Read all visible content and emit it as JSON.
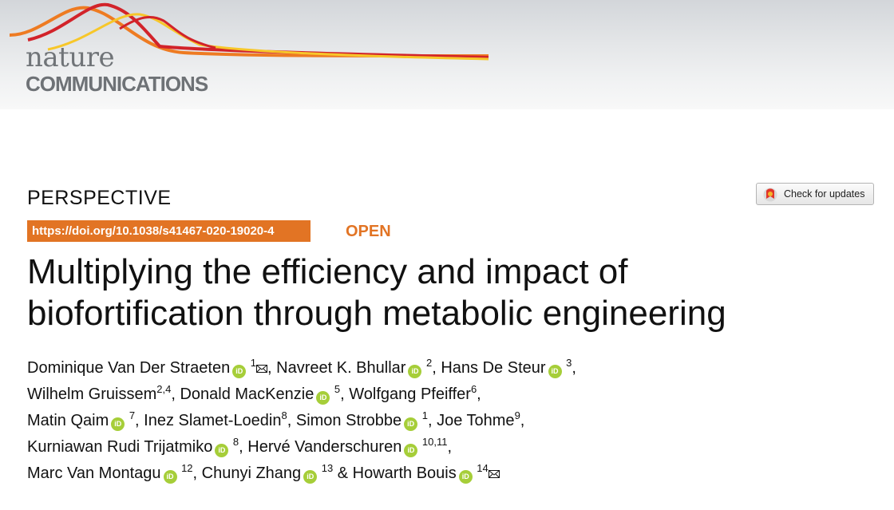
{
  "journal": {
    "logo_line1": "nature",
    "logo_line2": "COMMUNICATIONS"
  },
  "article": {
    "type": "PERSPECTIVE",
    "doi": "https://doi.org/10.1038/s41467-020-19020-4",
    "access": "OPEN",
    "title_line1": "Multiplying the efficiency and impact of",
    "title_line2": "biofortification through metabolic engineering"
  },
  "check_updates": {
    "label": "Check for updates"
  },
  "orcid_badge": "iD",
  "authors": [
    {
      "name": "Dominique Van Der Straeten",
      "affiliation": "1",
      "orcid": true,
      "corresponding": true
    },
    {
      "name": "Navreet K. Bhullar",
      "affiliation": "2",
      "orcid": true,
      "corresponding": false
    },
    {
      "name": "Hans De Steur",
      "affiliation": "3",
      "orcid": true,
      "corresponding": false
    },
    {
      "name": "Wilhelm Gruissem",
      "affiliation": "2,4",
      "orcid": false,
      "corresponding": false
    },
    {
      "name": "Donald MacKenzie",
      "affiliation": "5",
      "orcid": true,
      "corresponding": false
    },
    {
      "name": "Wolfgang Pfeiffer",
      "affiliation": "6",
      "orcid": false,
      "corresponding": false
    },
    {
      "name": "Matin Qaim",
      "affiliation": "7",
      "orcid": true,
      "corresponding": false
    },
    {
      "name": "Inez Slamet-Loedin",
      "affiliation": "8",
      "orcid": false,
      "corresponding": false
    },
    {
      "name": "Simon Strobbe",
      "affiliation": "1",
      "orcid": true,
      "corresponding": false
    },
    {
      "name": "Joe Tohme",
      "affiliation": "9",
      "orcid": false,
      "corresponding": false
    },
    {
      "name": "Kurniawan Rudi Trijatmiko",
      "affiliation": "8",
      "orcid": true,
      "corresponding": false
    },
    {
      "name": "Hervé Vanderschuren",
      "affiliation": "10,11",
      "orcid": true,
      "corresponding": false
    },
    {
      "name": "Marc Van Montagu",
      "affiliation": "12",
      "orcid": true,
      "corresponding": false
    },
    {
      "name": "Chunyi Zhang",
      "affiliation": "13",
      "orcid": true,
      "corresponding": false
    },
    {
      "name": "Howarth Bouis",
      "affiliation": "14",
      "orcid": true,
      "corresponding": true
    }
  ],
  "author_lines": [
    [
      0,
      1,
      2
    ],
    [
      3,
      4,
      5
    ],
    [
      6,
      7,
      8,
      9
    ],
    [
      10,
      11
    ],
    [
      12,
      13,
      14
    ]
  ],
  "colors": {
    "accent": "#e27424",
    "orcid": "#a6ce39",
    "wave_red": "#d2232a",
    "wave_orange": "#ee7b22",
    "wave_yellow": "#f7c72a"
  }
}
